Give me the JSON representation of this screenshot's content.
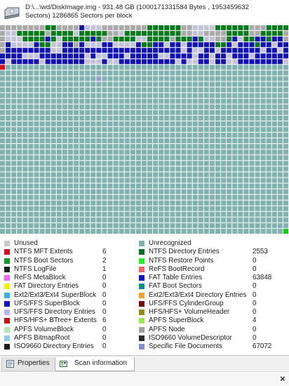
{
  "header": {
    "line1": "D:\\...\\wd/DiskImage.img - 931.48 GB (1000171331584 Bytes , 1953459632",
    "line2": "Sectors) 1286865 Sectors per block"
  },
  "block_map": {
    "columns": 51,
    "rows": 37,
    "grid_color": "#ffffff",
    "map_rows": [
      "CCCCCCCCDDCCCCBLLLCCCCCCCCDDDDDDCCLLLLDDDDDDCCCDDDD",
      "CLLDDDDDCDDDDLDDDDDCCLDDDDDDDDDDCCLLCCCCDDDDCCDDDDC",
      "CLLLDDDDBDLDDDDDBDCCDDDDLLDDDDCDDDBDLLCCDBLDDBBDBBC",
      "CBLLLLBDDLLBBCBLLLBBLLLLBDDBBLBBLBBBBBDDBLBBBDBBLBB",
      "CBBBBBBBBLLBBBBBBBBBBBBBBBBBBBBBLBLLBBLBBBBBBBLBBLB",
      "BBBBLLLBBBBBBBBLBLLBBBLBBBBBLLBBBBLBBLBBLBBBLBBBBBB",
      "BLBBBBBLBBBBBBBLLLBLLBBBBBBBBBBLBLLBBLBBLLBBBBBBBBL",
      "RUUUUUUUUUUUUUUUUUUUUUUUUUUUUUUUUUUUUUUUUUUUUUUUUUU",
      "UUUUUUUUUUUUUUUUUUUUUUUUUUUUUUUUUUUUUUUUUUUUUUUUUUU",
      "UUUUUUUUUUUUUUUUUPUUUUUUUUUUUUUUUUUUUUUUUUUUUUUUUUU"
    ],
    "last_block_code": "G",
    "fill_code": "U",
    "codes": {
      "U": "#7fb2b0",
      "C": "#aaaaaa",
      "D": "#0a7a1e",
      "B": "#1212b4",
      "L": "#c4c4d8",
      "R": "#d6101a",
      "P": "#9c9ccc",
      "G": "#11cc11"
    }
  },
  "legend": {
    "left": [
      {
        "label": "Unused",
        "count": "",
        "color": "#c8c8c8"
      },
      {
        "label": "NTFS MFT Extents",
        "count": "6",
        "color": "#d6101a"
      },
      {
        "label": "NTFS Boot Sectors",
        "count": "2",
        "color": "#139b2a"
      },
      {
        "label": "NTFS LogFile",
        "count": "1",
        "color": "#0a2a0a"
      },
      {
        "label": "ReFS MetaBlock",
        "count": "0",
        "color": "#ee66ee"
      },
      {
        "label": "FAT Directory Entries",
        "count": "0",
        "color": "#f4f400"
      },
      {
        "label": "Ext2/Ext3/Ext4 SuperBlock",
        "count": "0",
        "color": "#33b4e8"
      },
      {
        "label": "UFS/FFS SuperBlock",
        "count": "0",
        "color": "#1212c8"
      },
      {
        "label": "UFS/FFS Directory Entries",
        "count": "0",
        "color": "#b4b4ee"
      },
      {
        "label": "HFS/HFS+ BTree+ Extents",
        "count": "6",
        "color": "#c81212"
      },
      {
        "label": "APFS VolumeBlock",
        "count": "0",
        "color": "#b4e6b4"
      },
      {
        "label": "APFS BitmapRoot",
        "count": "0",
        "color": "#8cccf0"
      },
      {
        "label": "ISO9660 Directory Entries",
        "count": "0",
        "color": "#1a1a1a"
      }
    ],
    "right": [
      {
        "label": "Unrecognized",
        "count": "",
        "color": "#7fb2b0"
      },
      {
        "label": "NTFS Directory Entries",
        "count": "2553",
        "color": "#0a6e1e"
      },
      {
        "label": "NTFS Restore Points",
        "count": "0",
        "color": "#22ee22"
      },
      {
        "label": "ReFS BootRecord",
        "count": "0",
        "color": "#f46464"
      },
      {
        "label": "FAT Table Entries",
        "count": "63848",
        "color": "#1010c8"
      },
      {
        "label": "FAT Boot Sectors",
        "count": "0",
        "color": "#128c8c"
      },
      {
        "label": "Ext2/Ext3/Ext4 Directory Entries",
        "count": "0",
        "color": "#f4a030"
      },
      {
        "label": "UFS/FFS CylinderGroup",
        "count": "0",
        "color": "#6e0a0a"
      },
      {
        "label": "HFS/HFS+ VolumeHeader",
        "count": "0",
        "color": "#8c8c1a"
      },
      {
        "label": "APFS SuperBlock",
        "count": "4",
        "color": "#a0e650"
      },
      {
        "label": "APFS Node",
        "count": "0",
        "color": "#a0a0a0"
      },
      {
        "label": "ISO9660 VolumeDescriptor",
        "count": "0",
        "color": "#2a2a2a"
      },
      {
        "label": "Specific File Documents",
        "count": "67072",
        "color": "#8c8cd0"
      }
    ]
  },
  "tabs": [
    {
      "label": "Properties",
      "icon": "properties-icon"
    },
    {
      "label": "Scan information",
      "icon": "scan-information-icon"
    }
  ],
  "close_pane_glyph": "×"
}
